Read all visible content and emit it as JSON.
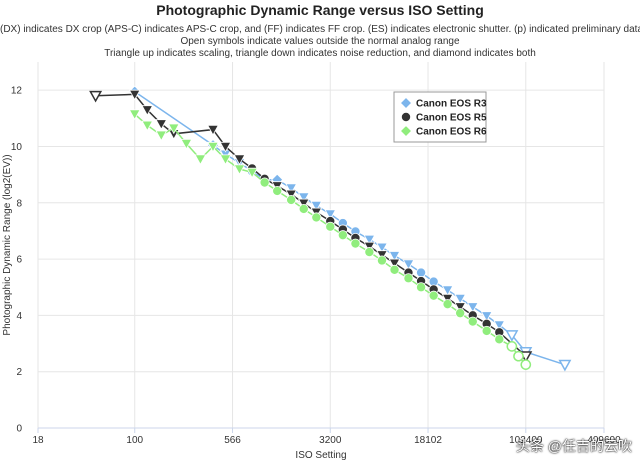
{
  "chart_data": {
    "type": "line",
    "title": "Photographic Dynamic Range versus ISO Setting",
    "subtitle": [
      "(DX) indicates DX crop (APS-C) indicates APS-C crop, and (FF) indicates FF crop. (ES) indicates electronic shutter. (p) indicated preliminary data.",
      "Open symbols indicate values outside the normal analog range",
      "Triangle up indicates scaling, triangle down indicates noise reduction, and diamond indicates both"
    ],
    "xlabel": "ISO Setting",
    "ylabel": "Photographic Dynamic Range (log2(EV))",
    "xscale": "log",
    "xlim": [
      18,
      409600
    ],
    "ylim": [
      0,
      13
    ],
    "xticks": [
      18,
      100,
      566,
      3200,
      18102,
      102400,
      409600
    ],
    "xtick_labels": [
      "18",
      "100",
      "566",
      "3200",
      "18102",
      "102400",
      "409600"
    ],
    "yticks": [
      0,
      2,
      4,
      6,
      8,
      10,
      12
    ],
    "grid": true,
    "legend_position": "top-right",
    "series": [
      {
        "name": "Canon EOS R3",
        "color": "#7cb5ec",
        "points": [
          {
            "x": 100,
            "y": 11.95,
            "m": "diamond"
          },
          {
            "x": 400,
            "y": 10.05,
            "m": "diamond"
          },
          {
            "x": 500,
            "y": 9.72,
            "m": "tri-down"
          },
          {
            "x": 640,
            "y": 9.42,
            "m": "tri-down"
          },
          {
            "x": 800,
            "y": 9.12,
            "m": "circle"
          },
          {
            "x": 1000,
            "y": 8.82,
            "m": "circle"
          },
          {
            "x": 1250,
            "y": 8.82,
            "m": "diamond"
          },
          {
            "x": 1600,
            "y": 8.52,
            "m": "tri-down"
          },
          {
            "x": 2000,
            "y": 8.2,
            "m": "tri-down"
          },
          {
            "x": 2500,
            "y": 7.9,
            "m": "tri-down"
          },
          {
            "x": 3200,
            "y": 7.6,
            "m": "tri-down"
          },
          {
            "x": 4000,
            "y": 7.28,
            "m": "circle"
          },
          {
            "x": 5000,
            "y": 6.98,
            "m": "circle"
          },
          {
            "x": 6400,
            "y": 6.7,
            "m": "tri-down"
          },
          {
            "x": 8000,
            "y": 6.42,
            "m": "tri-down"
          },
          {
            "x": 10000,
            "y": 6.12,
            "m": "tri-down"
          },
          {
            "x": 12800,
            "y": 5.82,
            "m": "tri-down"
          },
          {
            "x": 16000,
            "y": 5.52,
            "m": "circle"
          },
          {
            "x": 20000,
            "y": 5.2,
            "m": "circle"
          },
          {
            "x": 25600,
            "y": 4.9,
            "m": "tri-down"
          },
          {
            "x": 32000,
            "y": 4.6,
            "m": "tri-down"
          },
          {
            "x": 40000,
            "y": 4.3,
            "m": "tri-down"
          },
          {
            "x": 51200,
            "y": 3.98,
            "m": "tri-down"
          },
          {
            "x": 64000,
            "y": 3.66,
            "m": "tri-down"
          },
          {
            "x": 80000,
            "y": 3.3,
            "m": "tri-down-open"
          },
          {
            "x": 102400,
            "y": 2.7,
            "m": "tri-down-open"
          },
          {
            "x": 204800,
            "y": 2.25,
            "m": "tri-down-open"
          }
        ]
      },
      {
        "name": "Canon EOS R5",
        "color": "#333333",
        "points": [
          {
            "x": 50,
            "y": 11.8,
            "m": "tri-down-open"
          },
          {
            "x": 100,
            "y": 11.85,
            "m": "tri-down"
          },
          {
            "x": 125,
            "y": 11.3,
            "m": "tri-down"
          },
          {
            "x": 160,
            "y": 10.8,
            "m": "tri-down"
          },
          {
            "x": 200,
            "y": 10.45,
            "m": "tri-down"
          },
          {
            "x": 400,
            "y": 10.6,
            "m": "tri-down"
          },
          {
            "x": 500,
            "y": 10.0,
            "m": "tri-down"
          },
          {
            "x": 640,
            "y": 9.55,
            "m": "tri-down"
          },
          {
            "x": 800,
            "y": 9.22,
            "m": "circle"
          },
          {
            "x": 1000,
            "y": 8.85,
            "m": "circle"
          },
          {
            "x": 1250,
            "y": 8.6,
            "m": "tri-down"
          },
          {
            "x": 1600,
            "y": 8.3,
            "m": "tri-down"
          },
          {
            "x": 2000,
            "y": 7.98,
            "m": "tri-down"
          },
          {
            "x": 2500,
            "y": 7.66,
            "m": "tri-down"
          },
          {
            "x": 3200,
            "y": 7.35,
            "m": "circle"
          },
          {
            "x": 4000,
            "y": 7.05,
            "m": "circle"
          },
          {
            "x": 5000,
            "y": 6.75,
            "m": "circle"
          },
          {
            "x": 6400,
            "y": 6.45,
            "m": "tri-down"
          },
          {
            "x": 8000,
            "y": 6.15,
            "m": "tri-down"
          },
          {
            "x": 10000,
            "y": 5.85,
            "m": "tri-down"
          },
          {
            "x": 12800,
            "y": 5.52,
            "m": "circle"
          },
          {
            "x": 16000,
            "y": 5.22,
            "m": "circle"
          },
          {
            "x": 20000,
            "y": 4.92,
            "m": "circle"
          },
          {
            "x": 25600,
            "y": 4.6,
            "m": "tri-down"
          },
          {
            "x": 32000,
            "y": 4.3,
            "m": "tri-down"
          },
          {
            "x": 40000,
            "y": 4.0,
            "m": "circle"
          },
          {
            "x": 51200,
            "y": 3.7,
            "m": "circle"
          },
          {
            "x": 64000,
            "y": 3.4,
            "m": "circle"
          },
          {
            "x": 102400,
            "y": 2.55,
            "m": "tri-down-open"
          }
        ]
      },
      {
        "name": "Canon EOS R6",
        "color": "#90ed7d",
        "points": [
          {
            "x": 100,
            "y": 11.15,
            "m": "tri-down"
          },
          {
            "x": 125,
            "y": 10.75,
            "m": "tri-down"
          },
          {
            "x": 160,
            "y": 10.4,
            "m": "tri-down"
          },
          {
            "x": 200,
            "y": 10.65,
            "m": "tri-down"
          },
          {
            "x": 250,
            "y": 10.1,
            "m": "tri-down"
          },
          {
            "x": 320,
            "y": 9.55,
            "m": "tri-down"
          },
          {
            "x": 400,
            "y": 10.0,
            "m": "tri-down"
          },
          {
            "x": 500,
            "y": 9.55,
            "m": "tri-down"
          },
          {
            "x": 640,
            "y": 9.2,
            "m": "tri-down"
          },
          {
            "x": 800,
            "y": 9.08,
            "m": "tri-down"
          },
          {
            "x": 1000,
            "y": 8.72,
            "m": "circle"
          },
          {
            "x": 1250,
            "y": 8.42,
            "m": "circle"
          },
          {
            "x": 1600,
            "y": 8.1,
            "m": "circle"
          },
          {
            "x": 2000,
            "y": 7.78,
            "m": "circle"
          },
          {
            "x": 2500,
            "y": 7.48,
            "m": "circle"
          },
          {
            "x": 3200,
            "y": 7.15,
            "m": "circle"
          },
          {
            "x": 4000,
            "y": 6.85,
            "m": "circle"
          },
          {
            "x": 5000,
            "y": 6.55,
            "m": "circle"
          },
          {
            "x": 6400,
            "y": 6.25,
            "m": "circle"
          },
          {
            "x": 8000,
            "y": 5.95,
            "m": "circle"
          },
          {
            "x": 10000,
            "y": 5.62,
            "m": "circle"
          },
          {
            "x": 12800,
            "y": 5.32,
            "m": "circle"
          },
          {
            "x": 16000,
            "y": 5.0,
            "m": "circle"
          },
          {
            "x": 20000,
            "y": 4.7,
            "m": "circle"
          },
          {
            "x": 25600,
            "y": 4.4,
            "m": "circle"
          },
          {
            "x": 32000,
            "y": 4.08,
            "m": "circle"
          },
          {
            "x": 40000,
            "y": 3.78,
            "m": "circle"
          },
          {
            "x": 51200,
            "y": 3.45,
            "m": "circle"
          },
          {
            "x": 64000,
            "y": 3.15,
            "m": "circle"
          },
          {
            "x": 80000,
            "y": 2.9,
            "m": "circle-open"
          },
          {
            "x": 90000,
            "y": 2.55,
            "m": "circle-open"
          },
          {
            "x": 102400,
            "y": 2.25,
            "m": "circle-open"
          }
        ]
      }
    ]
  },
  "watermark": "头条 @任吉的云吹"
}
